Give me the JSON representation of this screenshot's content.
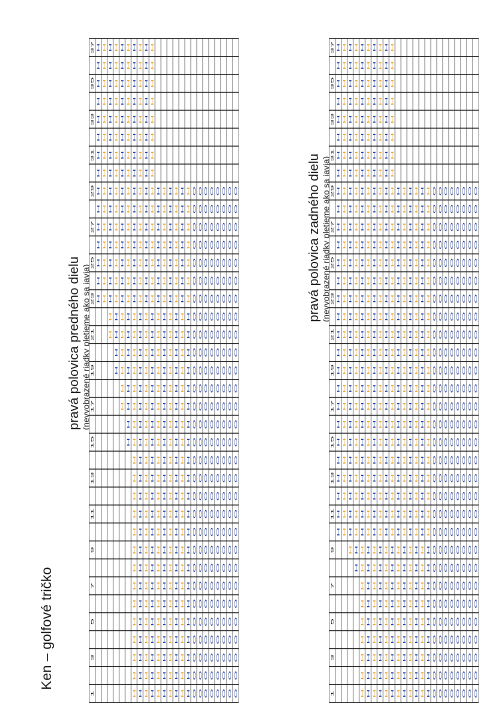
{
  "title": "Ken – golfové tričko",
  "colors": {
    "blue": "#1f3c9e",
    "orange": "#f0a020"
  },
  "charts": [
    {
      "title": "pravá polovica predného dielu",
      "subtitle": "(nevyobrazené riadky pletieme ako sa javia)",
      "rows": [
        {
          "label": "37",
          "cells": "BOBOBOBOBO.............."
        },
        {
          "label": "",
          "cells": "BOBOBOBOBO.............."
        },
        {
          "label": "35",
          "cells": "BOBOBOBOBO.............."
        },
        {
          "label": "",
          "cells": "BOBOBOBOBO.............."
        },
        {
          "label": "33",
          "cells": "BOBOBOBOBO.............."
        },
        {
          "label": "",
          "cells": "BOBOBOBOBO.............."
        },
        {
          "label": "31",
          "cells": "BOBOBOBOBO.............."
        },
        {
          "label": "",
          "cells": "BOBOBOBOBO.............."
        },
        {
          "label": "29",
          "cells": "BOBOBOBOBOBOBOBOOOOOOOOO"
        },
        {
          "label": "",
          "cells": "BOBOBOBOBOBOBOBOOOOOOOOO"
        },
        {
          "label": "27",
          "cells": "BOBOBOBOBOBOBOBOOOOOOOOO"
        },
        {
          "label": "",
          "cells": "BOBOBOBOBOBOBOBOOOOOOOOO"
        },
        {
          "label": "25",
          "cells": "BOBOBOBOBOBOBOBOOOOOOOOO"
        },
        {
          "label": "",
          "cells": "BOBOBOBOBOBOBOBOOOOOOOOO"
        },
        {
          "label": "23",
          "cells": "BOBOBOBOBOBOBOBOOOOOOOOO"
        },
        {
          "label": "",
          "cells": "..OBOBOBOBOBOBOBOOOOOOOO"
        },
        {
          "label": "21",
          "cells": "..OBOBOBOBOBOBOBOOOOOOOO"
        },
        {
          "label": "",
          "cells": "...BOBOBOBOBOBOBOOOOOOOO"
        },
        {
          "label": "19",
          "cells": "...BOBOBOBOBOBOBOOOOOOOO"
        },
        {
          "label": "",
          "cells": "....OBOBOBOBOBOBOOOOOOOO"
        },
        {
          "label": "17",
          "cells": "....OBOBOBOBOBOBOOOOOOOO"
        },
        {
          "label": "",
          "cells": ".....BOBOBOBOBOBOOOOOOOO"
        },
        {
          "label": "15",
          "cells": ".....BOBOBOBOBOBOOOOOOOO"
        },
        {
          "label": "",
          "cells": "......OBOBOBOBOBOOOOOOOO"
        },
        {
          "label": "13",
          "cells": "......OBOBOBOBOBOOOOOOOO"
        },
        {
          "label": "",
          "cells": "......OBOBOBOBOBOOOOOOOO"
        },
        {
          "label": "11",
          "cells": "......OBOBOBOBOBOOOOOOOO"
        },
        {
          "label": "",
          "cells": "......OBOBOBOBOBOOOOOOOO"
        },
        {
          "label": "9",
          "cells": "......OBOBOBOBOBOOOOOOOO"
        },
        {
          "label": "",
          "cells": "......OBOBOBOBOBOOOOOOOO"
        },
        {
          "label": "7",
          "cells": "......OBOBOBOBOBOOOOOOOO"
        },
        {
          "label": "",
          "cells": "......OBOBOBOBOBOOOOOOOO"
        },
        {
          "label": "5",
          "cells": "......OBOBOBOBOBOOOOOOOO"
        },
        {
          "label": "",
          "cells": "......OBOBOBOBOBOOOOOOOO"
        },
        {
          "label": "3",
          "cells": "......OBOBOBOBOBOOOOOOOO"
        },
        {
          "label": "",
          "cells": "......OBOBOBOBOBOOOOOOOO"
        },
        {
          "label": "1",
          "cells": "......OBOBOBOBOBOOOOOOOO"
        }
      ]
    },
    {
      "title": "pravá polovica zadného dielu",
      "subtitle": "(nevyobrazené riadky pletieme ako sa javia)",
      "rows": [
        {
          "label": "37",
          "cells": "BOBOBOBOBO.............."
        },
        {
          "label": "",
          "cells": "BOBOBOBOBO.............."
        },
        {
          "label": "35",
          "cells": "BOBOBOBOBO.............."
        },
        {
          "label": "",
          "cells": "BOBOBOBOBO.............."
        },
        {
          "label": "33",
          "cells": "BOBOBOBOBO.............."
        },
        {
          "label": "",
          "cells": "BOBOBOBOBO.............."
        },
        {
          "label": "31",
          "cells": "BOBOBOBOBO.............."
        },
        {
          "label": "",
          "cells": "BOBOBOBOBO.............."
        },
        {
          "label": "29",
          "cells": "BOBOBOBOBOBOBOBOOOOOOOOO"
        },
        {
          "label": "",
          "cells": "BOBOBOBOBOBOBOBOOOOOOOOO"
        },
        {
          "label": "27",
          "cells": "BOBOBOBOBOBOBOBOOOOOOOOO"
        },
        {
          "label": "",
          "cells": "BOBOBOBOBOBOBOBOOOOOOOOO"
        },
        {
          "label": "25",
          "cells": "BOBOBOBOBOBOBOBOOOOOOOOO"
        },
        {
          "label": "",
          "cells": "BOBOBOBOBOBOBOBOOOOOOOOO"
        },
        {
          "label": "23",
          "cells": "BOBOBOBOBOBOBOBOOOOOOOOO"
        },
        {
          "label": "",
          "cells": "BOBOBOBOBOBOBOBOOOOOOOOO"
        },
        {
          "label": "21",
          "cells": "BOBOBOBOBOBOBOBOOOOOOOOO"
        },
        {
          "label": "",
          "cells": "BOBOBOBOBOBOBOBOOOOOOOOO"
        },
        {
          "label": "19",
          "cells": "BOBOBOBOBOBOBOBOOOOOOOOO"
        },
        {
          "label": "",
          "cells": "BOBOBOBOBOBOBOBOOOOOOOOO"
        },
        {
          "label": "17",
          "cells": "BOBOBOBOBOBOBOBOOOOOOOOO"
        },
        {
          "label": "",
          "cells": "BOBOBOBOBOBOBOBOOOOOOOOO"
        },
        {
          "label": "15",
          "cells": "BOBOBOBOBOBOBOBOOOOOOOOO"
        },
        {
          "label": "",
          "cells": "BOBOBOBOBOBOBOBOOOOOOOOO"
        },
        {
          "label": "13",
          "cells": "BOBOBOBOBOBOBOBOOOOOOOOO"
        },
        {
          "label": "",
          "cells": "BOBOBOBOBOBOBOBOOOOOOOOO"
        },
        {
          "label": "11",
          "cells": "BOBOBOBOBOBOBOBOOOOOOOOO"
        },
        {
          "label": "",
          "cells": "BOBOBOBOBOBOBOBOOOOOOOOO"
        },
        {
          "label": "9",
          "cells": "..OBOBOBOBOBOBOBOOOOOOOO"
        },
        {
          "label": "",
          "cells": "...BOBOBOBOBOBOBOOOOOOOO"
        },
        {
          "label": "7",
          "cells": "....OBOBOBOBOBOBOOOOOOOO"
        },
        {
          "label": "",
          "cells": "....OBOBOBOBOBOBOOOOOOOO"
        },
        {
          "label": "5",
          "cells": "....OBOBOBOBOBOBOOOOOOOO"
        },
        {
          "label": "",
          "cells": "....OBOBOBOBOBOBOOOOOOOO"
        },
        {
          "label": "3",
          "cells": "....OBOBOBOBOBOBOOOOOOOO"
        },
        {
          "label": "",
          "cells": "....OBOBOBOBOBOBOOOOOOOO"
        },
        {
          "label": "1",
          "cells": "....OBOBOBOBOBOBOOOOOOOO"
        }
      ]
    }
  ],
  "symbols": {
    "B": "H",
    "O": "H",
    "C": "O"
  }
}
